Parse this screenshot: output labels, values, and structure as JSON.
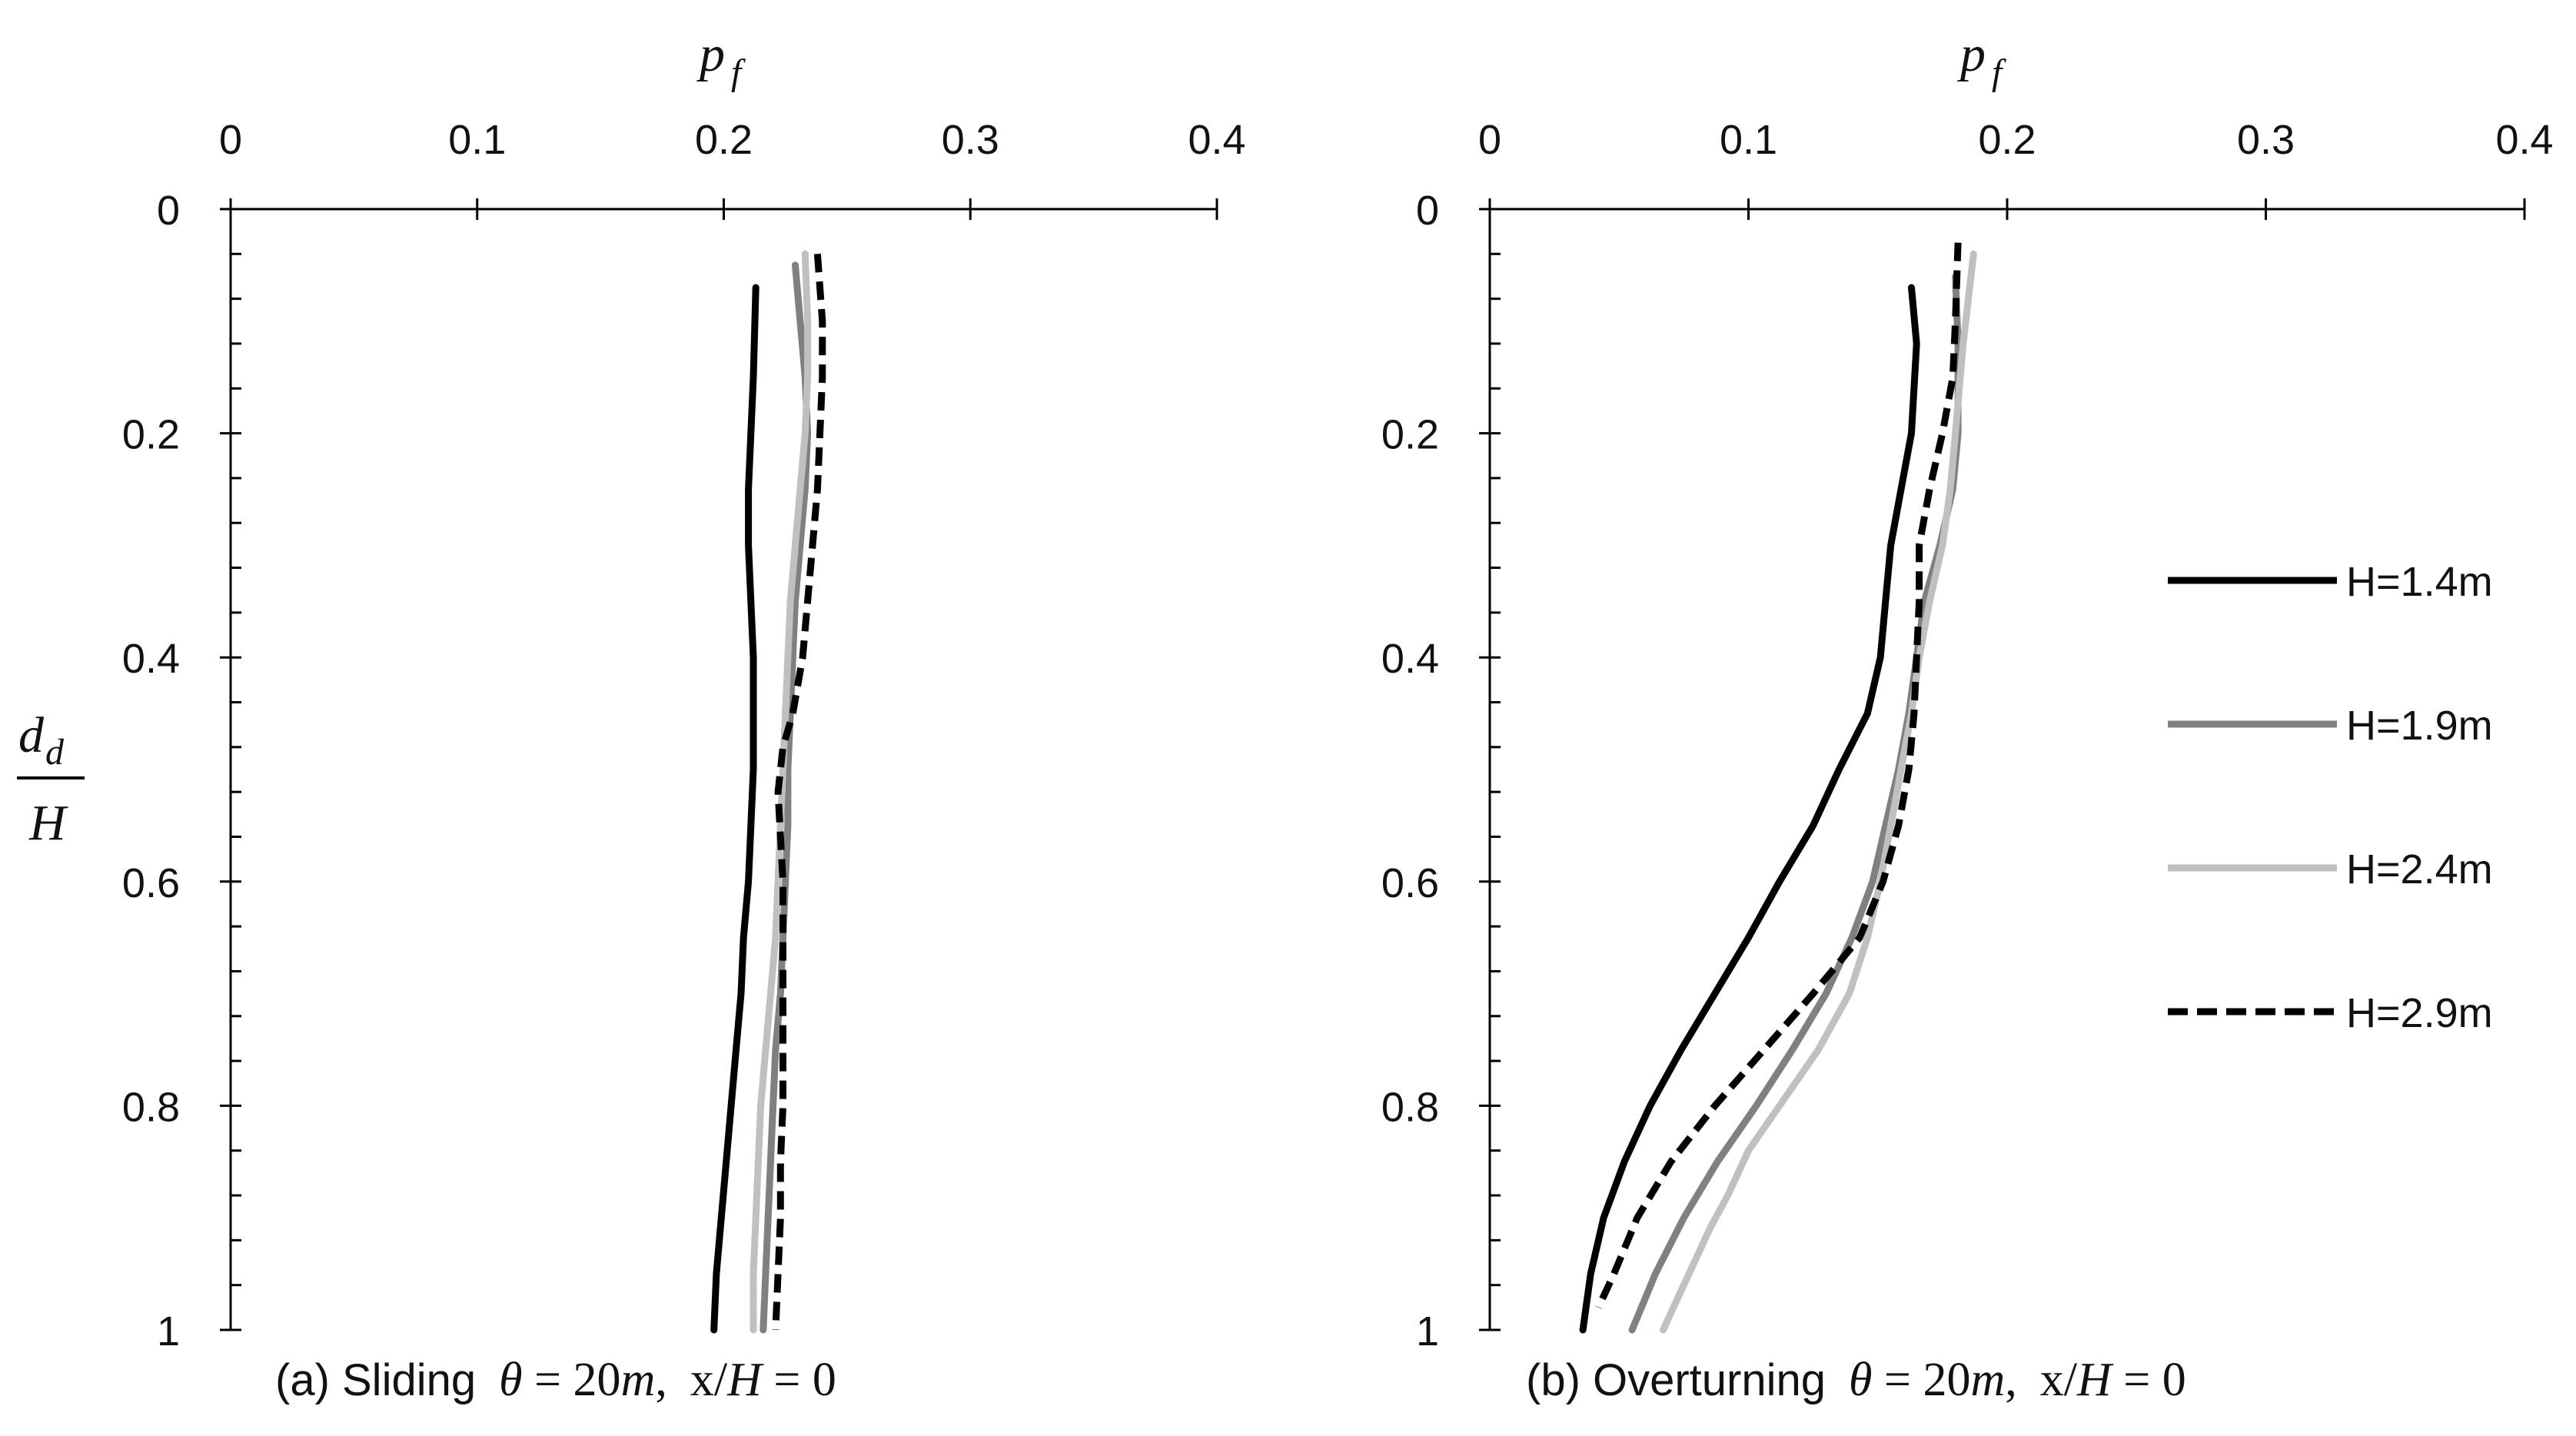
{
  "chart_data": [
    {
      "type": "line",
      "panel": "a",
      "caption": {
        "prefix": "(a) Sliding",
        "theta_symbol": "θ",
        "eq1": " = 20",
        "unit": "m",
        "comma": ",",
        "x_symbol": "x",
        "slash": "/",
        "h_symbol": "H",
        "eq2": " = 0"
      },
      "x_axis": {
        "label_main": "p",
        "label_sub": "f",
        "range": [
          0,
          0.4
        ],
        "ticks": [
          "0",
          "0.1",
          "0.2",
          "0.3",
          "0.4"
        ],
        "tick_values": [
          0,
          0.1,
          0.2,
          0.3,
          0.4
        ],
        "position": "top"
      },
      "y_axis": {
        "label_num_main": "d",
        "label_num_sub": "d",
        "label_den": "H",
        "range": [
          0,
          1
        ],
        "reversed": true,
        "ticks": [
          "0",
          "0.2",
          "0.4",
          "0.6",
          "0.8",
          "1"
        ],
        "tick_values": [
          0,
          0.2,
          0.4,
          0.6,
          0.8,
          1
        ],
        "minor_step": 0.04
      },
      "series": [
        {
          "name": "H=1.4m",
          "color": "#000000",
          "dashed": false,
          "points": [
            [
              0.213,
              0.07
            ],
            [
              0.212,
              0.15
            ],
            [
              0.211,
              0.2
            ],
            [
              0.21,
              0.25
            ],
            [
              0.21,
              0.3
            ],
            [
              0.211,
              0.35
            ],
            [
              0.212,
              0.4
            ],
            [
              0.212,
              0.45
            ],
            [
              0.212,
              0.5
            ],
            [
              0.211,
              0.55
            ],
            [
              0.21,
              0.6
            ],
            [
              0.208,
              0.65
            ],
            [
              0.207,
              0.7
            ],
            [
              0.205,
              0.75
            ],
            [
              0.203,
              0.8
            ],
            [
              0.201,
              0.85
            ],
            [
              0.199,
              0.9
            ],
            [
              0.197,
              0.95
            ],
            [
              0.196,
              1.0
            ]
          ]
        },
        {
          "name": "H=1.9m",
          "color": "#808080",
          "dashed": false,
          "points": [
            [
              0.229,
              0.05
            ],
            [
              0.231,
              0.1
            ],
            [
              0.233,
              0.15
            ],
            [
              0.234,
              0.2
            ],
            [
              0.233,
              0.25
            ],
            [
              0.231,
              0.3
            ],
            [
              0.229,
              0.35
            ],
            [
              0.228,
              0.4
            ],
            [
              0.227,
              0.45
            ],
            [
              0.226,
              0.5
            ],
            [
              0.226,
              0.55
            ],
            [
              0.225,
              0.6
            ],
            [
              0.224,
              0.65
            ],
            [
              0.223,
              0.7
            ],
            [
              0.221,
              0.75
            ],
            [
              0.22,
              0.8
            ],
            [
              0.219,
              0.85
            ],
            [
              0.218,
              0.9
            ],
            [
              0.217,
              0.95
            ],
            [
              0.216,
              1.0
            ]
          ]
        },
        {
          "name": "H=2.4m",
          "color": "#c0c0c0",
          "dashed": false,
          "points": [
            [
              0.233,
              0.04
            ],
            [
              0.234,
              0.1
            ],
            [
              0.234,
              0.15
            ],
            [
              0.233,
              0.2
            ],
            [
              0.231,
              0.25
            ],
            [
              0.229,
              0.3
            ],
            [
              0.227,
              0.35
            ],
            [
              0.226,
              0.4
            ],
            [
              0.225,
              0.45
            ],
            [
              0.224,
              0.5
            ],
            [
              0.223,
              0.55
            ],
            [
              0.222,
              0.6
            ],
            [
              0.221,
              0.65
            ],
            [
              0.219,
              0.7
            ],
            [
              0.217,
              0.75
            ],
            [
              0.215,
              0.8
            ],
            [
              0.214,
              0.85
            ],
            [
              0.213,
              0.9
            ],
            [
              0.212,
              0.95
            ],
            [
              0.212,
              1.0
            ]
          ]
        },
        {
          "name": "H=2.9m",
          "color": "#000000",
          "dashed": true,
          "points": [
            [
              0.238,
              0.04
            ],
            [
              0.24,
              0.1
            ],
            [
              0.24,
              0.15
            ],
            [
              0.239,
              0.2
            ],
            [
              0.238,
              0.25
            ],
            [
              0.236,
              0.3
            ],
            [
              0.234,
              0.35
            ],
            [
              0.232,
              0.4
            ],
            [
              0.228,
              0.45
            ],
            [
              0.224,
              0.48
            ],
            [
              0.222,
              0.52
            ],
            [
              0.223,
              0.56
            ],
            [
              0.224,
              0.6
            ],
            [
              0.224,
              0.65
            ],
            [
              0.224,
              0.7
            ],
            [
              0.224,
              0.75
            ],
            [
              0.224,
              0.8
            ],
            [
              0.223,
              0.85
            ],
            [
              0.223,
              0.9
            ],
            [
              0.222,
              0.95
            ],
            [
              0.221,
              1.0
            ]
          ]
        }
      ]
    },
    {
      "type": "line",
      "panel": "b",
      "caption": {
        "prefix": "(b) Overturning",
        "theta_symbol": "θ",
        "eq1": " = 20",
        "unit": "m",
        "comma": ",",
        "x_symbol": "x",
        "slash": "/",
        "h_symbol": "H",
        "eq2": " = 0"
      },
      "x_axis": {
        "label_main": "p",
        "label_sub": "f",
        "range": [
          0,
          0.4
        ],
        "ticks": [
          "0",
          "0.1",
          "0.2",
          "0.3",
          "0.4"
        ],
        "tick_values": [
          0,
          0.1,
          0.2,
          0.3,
          0.4
        ],
        "position": "top"
      },
      "y_axis": {
        "range": [
          0,
          1
        ],
        "reversed": true,
        "ticks": [
          "0",
          "0.2",
          "0.4",
          "0.6",
          "0.8",
          "1"
        ],
        "tick_values": [
          0,
          0.2,
          0.4,
          0.6,
          0.8,
          1
        ],
        "minor_step": 0.04
      },
      "legend": {
        "position": "right"
      },
      "series": [
        {
          "name": "H=1.4m",
          "color": "#000000",
          "dashed": false,
          "points": [
            [
              0.163,
              0.07
            ],
            [
              0.165,
              0.12
            ],
            [
              0.163,
              0.2
            ],
            [
              0.159,
              0.25
            ],
            [
              0.155,
              0.3
            ],
            [
              0.153,
              0.35
            ],
            [
              0.151,
              0.4
            ],
            [
              0.146,
              0.45
            ],
            [
              0.135,
              0.5
            ],
            [
              0.125,
              0.55
            ],
            [
              0.112,
              0.6
            ],
            [
              0.1,
              0.65
            ],
            [
              0.087,
              0.7
            ],
            [
              0.074,
              0.75
            ],
            [
              0.062,
              0.8
            ],
            [
              0.052,
              0.85
            ],
            [
              0.044,
              0.9
            ],
            [
              0.039,
              0.95
            ],
            [
              0.036,
              1.0
            ]
          ]
        },
        {
          "name": "H=1.9m",
          "color": "#808080",
          "dashed": false,
          "points": [
            [
              0.18,
              0.06
            ],
            [
              0.181,
              0.12
            ],
            [
              0.181,
              0.2
            ],
            [
              0.179,
              0.25
            ],
            [
              0.174,
              0.3
            ],
            [
              0.168,
              0.35
            ],
            [
              0.165,
              0.4
            ],
            [
              0.162,
              0.45
            ],
            [
              0.158,
              0.5
            ],
            [
              0.153,
              0.55
            ],
            [
              0.148,
              0.6
            ],
            [
              0.14,
              0.65
            ],
            [
              0.13,
              0.7
            ],
            [
              0.117,
              0.75
            ],
            [
              0.103,
              0.8
            ],
            [
              0.088,
              0.85
            ],
            [
              0.075,
              0.9
            ],
            [
              0.064,
              0.95
            ],
            [
              0.055,
              1.0
            ]
          ]
        },
        {
          "name": "H=2.4m",
          "color": "#c0c0c0",
          "dashed": false,
          "points": [
            [
              0.187,
              0.04
            ],
            [
              0.183,
              0.12
            ],
            [
              0.18,
              0.2
            ],
            [
              0.178,
              0.25
            ],
            [
              0.175,
              0.3
            ],
            [
              0.17,
              0.35
            ],
            [
              0.166,
              0.4
            ],
            [
              0.163,
              0.45
            ],
            [
              0.159,
              0.5
            ],
            [
              0.155,
              0.55
            ],
            [
              0.151,
              0.6
            ],
            [
              0.146,
              0.65
            ],
            [
              0.139,
              0.7
            ],
            [
              0.127,
              0.75
            ],
            [
              0.112,
              0.8
            ],
            [
              0.1,
              0.84
            ],
            [
              0.092,
              0.88
            ],
            [
              0.085,
              0.91
            ],
            [
              0.079,
              0.94
            ],
            [
              0.073,
              0.97
            ],
            [
              0.067,
              1.0
            ]
          ]
        },
        {
          "name": "H=2.9m",
          "color": "#000000",
          "dashed": true,
          "points": [
            [
              0.181,
              0.03
            ],
            [
              0.18,
              0.1
            ],
            [
              0.179,
              0.15
            ],
            [
              0.175,
              0.2
            ],
            [
              0.17,
              0.25
            ],
            [
              0.166,
              0.3
            ],
            [
              0.166,
              0.35
            ],
            [
              0.165,
              0.4
            ],
            [
              0.164,
              0.45
            ],
            [
              0.162,
              0.5
            ],
            [
              0.158,
              0.55
            ],
            [
              0.152,
              0.6
            ],
            [
              0.143,
              0.65
            ],
            [
              0.125,
              0.7
            ],
            [
              0.106,
              0.75
            ],
            [
              0.087,
              0.8
            ],
            [
              0.07,
              0.85
            ],
            [
              0.057,
              0.9
            ],
            [
              0.048,
              0.95
            ],
            [
              0.042,
              0.98
            ]
          ]
        }
      ]
    }
  ]
}
